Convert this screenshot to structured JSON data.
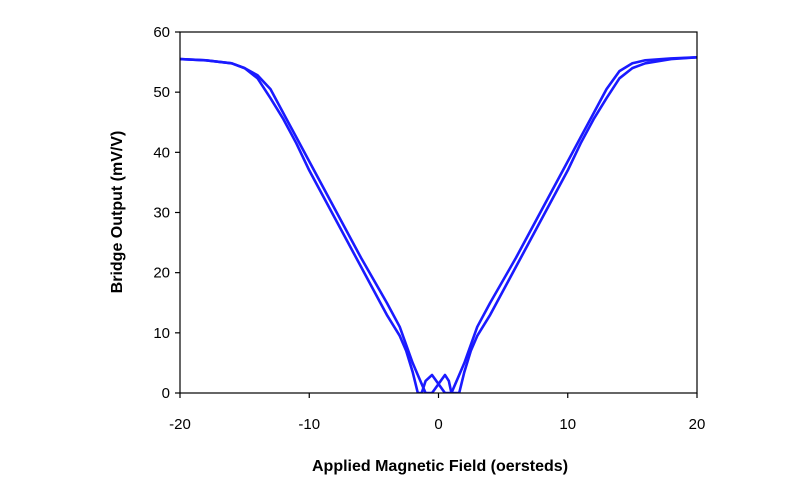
{
  "chart_data": {
    "type": "line",
    "title": "",
    "xlabel": "Applied Magnetic Field (oersteds)",
    "ylabel": "Bridge Output (mV/V)",
    "xlim": [
      -20,
      20
    ],
    "ylim": [
      0,
      60
    ],
    "x_ticks": [
      -20,
      -10,
      0,
      10,
      20
    ],
    "y_ticks": [
      0,
      10,
      20,
      30,
      40,
      50,
      60
    ],
    "x_tick_labels": [
      "-20",
      "-10",
      "0",
      "10",
      "20"
    ],
    "y_tick_labels": [
      "0",
      "10",
      "20",
      "30",
      "40",
      "50",
      "60"
    ],
    "grid": false,
    "legend": "none",
    "line_color": "#1a1aff",
    "series": [
      {
        "x": [
          -20,
          -18,
          -16,
          -15,
          -14,
          -13,
          -12,
          -11,
          -10,
          -8,
          -6,
          -4,
          -3,
          -2.5,
          -2,
          -1.6,
          -1.3,
          -1.0,
          -0.5,
          0,
          0.5,
          1,
          1.5,
          2,
          3,
          4,
          6,
          8,
          10,
          11,
          12,
          13,
          14,
          15,
          16,
          18,
          20
        ],
        "y": [
          55.5,
          55.3,
          54.8,
          54,
          52.3,
          49,
          45.5,
          41.5,
          37,
          29,
          21,
          13,
          9.5,
          7,
          3.5,
          0,
          0,
          2,
          3,
          1.5,
          0,
          0,
          2.5,
          5,
          11,
          15,
          22.5,
          30.5,
          38.5,
          42.5,
          46.5,
          50.5,
          53.5,
          54.8,
          55.3,
          55.6,
          55.8
        ]
      },
      {
        "x": [
          -20,
          -18,
          -16,
          -15,
          -14,
          -13,
          -12,
          -11,
          -10,
          -8,
          -6,
          -4,
          -3,
          -2,
          -1.5,
          -1,
          -0.5,
          0,
          0.5,
          0.8,
          1.0,
          1.3,
          1.6,
          2,
          2.5,
          3,
          4,
          6,
          8,
          10,
          11,
          12,
          13,
          14,
          15,
          16,
          18,
          20
        ],
        "y": [
          55.5,
          55.3,
          54.8,
          54,
          52.8,
          50.5,
          46.5,
          42.5,
          38.5,
          30.5,
          22.5,
          15,
          11,
          5,
          2.5,
          0,
          0,
          1.5,
          3,
          2,
          0,
          0,
          0,
          3.5,
          7,
          9.5,
          13,
          21,
          29,
          37,
          41.5,
          45.5,
          49,
          52.3,
          54,
          54.8,
          55.5,
          55.8
        ]
      }
    ]
  }
}
